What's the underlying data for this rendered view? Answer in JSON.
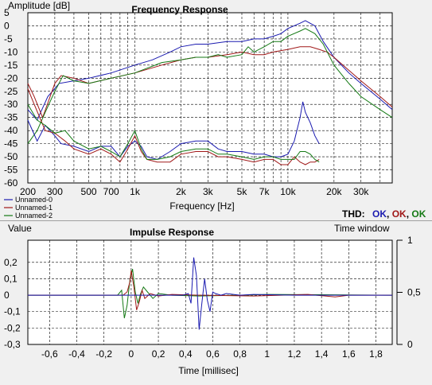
{
  "colors": {
    "series0": "#1b1bb0",
    "series1": "#a01818",
    "series2": "#157a15",
    "background": "#ffffff"
  },
  "thd": {
    "label": "THD:",
    "values": [
      "OK",
      "OK",
      "OK"
    ]
  },
  "chart_data": [
    {
      "type": "line",
      "title": "Frequency Response",
      "ylabel": "Amplitude [dB]",
      "xlabel": "Frequency [Hz]",
      "xscale": "log",
      "grid": true,
      "legend": "bottom-left",
      "xlim": [
        200,
        48000
      ],
      "ylim": [
        -60,
        5
      ],
      "x_ticks": [
        {
          "v": 200,
          "l": "200"
        },
        {
          "v": 300,
          "l": "300"
        },
        {
          "v": 500,
          "l": "500"
        },
        {
          "v": 700,
          "l": "700"
        },
        {
          "v": 1000,
          "l": "1k"
        },
        {
          "v": 2000,
          "l": "2k"
        },
        {
          "v": 3000,
          "l": "3k"
        },
        {
          "v": 5000,
          "l": "5k"
        },
        {
          "v": 7000,
          "l": "7k"
        },
        {
          "v": 10000,
          "l": "10k"
        },
        {
          "v": 20000,
          "l": "20k"
        },
        {
          "v": 30000,
          "l": "30k"
        }
      ],
      "y_ticks": [
        5,
        0,
        -5,
        -10,
        -15,
        -20,
        -25,
        -30,
        -35,
        -40,
        -45,
        -50,
        -55,
        -60
      ],
      "series": [
        {
          "name": "Unnamed-0",
          "points": [
            [
              200,
              -32
            ],
            [
              230,
              -36
            ],
            [
              270,
              -27
            ],
            [
              320,
              -22
            ],
            [
              400,
              -21
            ],
            [
              500,
              -20
            ],
            [
              700,
              -18
            ],
            [
              1000,
              -15
            ],
            [
              1300,
              -13
            ],
            [
              1700,
              -10
            ],
            [
              2000,
              -8
            ],
            [
              2500,
              -7
            ],
            [
              3000,
              -7
            ],
            [
              4000,
              -6
            ],
            [
              5000,
              -6
            ],
            [
              6000,
              -5
            ],
            [
              7000,
              -5
            ],
            [
              8000,
              -4
            ],
            [
              9000,
              -3
            ],
            [
              10000,
              -1
            ],
            [
              12000,
              1
            ],
            [
              13000,
              2
            ],
            [
              15000,
              0
            ],
            [
              17000,
              -6
            ],
            [
              20000,
              -12
            ],
            [
              25000,
              -18
            ],
            [
              30000,
              -22
            ],
            [
              40000,
              -28
            ],
            [
              48000,
              -32
            ]
          ]
        },
        {
          "name": "Unnamed-1",
          "points": [
            [
              200,
              -22
            ],
            [
              220,
              -27
            ],
            [
              250,
              -35
            ],
            [
              300,
              -22
            ],
            [
              330,
              -19
            ],
            [
              400,
              -20
            ],
            [
              500,
              -22
            ],
            [
              700,
              -20
            ],
            [
              1000,
              -18
            ],
            [
              1500,
              -15
            ],
            [
              2000,
              -13
            ],
            [
              2500,
              -12
            ],
            [
              3000,
              -12
            ],
            [
              4000,
              -11
            ],
            [
              5000,
              -10
            ],
            [
              6000,
              -11
            ],
            [
              7000,
              -11
            ],
            [
              8000,
              -10
            ],
            [
              10000,
              -9
            ],
            [
              12000,
              -8
            ],
            [
              14000,
              -8
            ],
            [
              16000,
              -9
            ],
            [
              18000,
              -10
            ],
            [
              20000,
              -12
            ],
            [
              25000,
              -17
            ],
            [
              30000,
              -21
            ],
            [
              40000,
              -27
            ],
            [
              48000,
              -31
            ]
          ]
        },
        {
          "name": "Unnamed-2",
          "points": [
            [
              200,
              -45
            ],
            [
              230,
              -40
            ],
            [
              260,
              -33
            ],
            [
              300,
              -25
            ],
            [
              340,
              -19
            ],
            [
              400,
              -21
            ],
            [
              500,
              -22
            ],
            [
              700,
              -20
            ],
            [
              1000,
              -18
            ],
            [
              1500,
              -14
            ],
            [
              2000,
              -13
            ],
            [
              2500,
              -12
            ],
            [
              3000,
              -12
            ],
            [
              3500,
              -11
            ],
            [
              4000,
              -12
            ],
            [
              5000,
              -11
            ],
            [
              5500,
              -8
            ],
            [
              6000,
              -10
            ],
            [
              7000,
              -8
            ],
            [
              8000,
              -6
            ],
            [
              9000,
              -6
            ],
            [
              10000,
              -4
            ],
            [
              12000,
              -2
            ],
            [
              13000,
              -1
            ],
            [
              15000,
              -3
            ],
            [
              17000,
              -7
            ],
            [
              20000,
              -15
            ],
            [
              25000,
              -22
            ],
            [
              30000,
              -27
            ],
            [
              40000,
              -32
            ],
            [
              48000,
              -35
            ]
          ]
        },
        {
          "name": "Unnamed-0 THD",
          "points": [
            [
              200,
              -36
            ],
            [
              230,
              -44
            ],
            [
              260,
              -38
            ],
            [
              300,
              -42
            ],
            [
              330,
              -45
            ],
            [
              400,
              -46
            ],
            [
              500,
              -48
            ],
            [
              600,
              -46
            ],
            [
              700,
              -46
            ],
            [
              800,
              -50
            ],
            [
              900,
              -46
            ],
            [
              1000,
              -44
            ],
            [
              1100,
              -46
            ],
            [
              1200,
              -50
            ],
            [
              1400,
              -51
            ],
            [
              1700,
              -48
            ],
            [
              2000,
              -45
            ],
            [
              2500,
              -44
            ],
            [
              3000,
              -44
            ],
            [
              3500,
              -47
            ],
            [
              4000,
              -48
            ],
            [
              5000,
              -48
            ],
            [
              6000,
              -49
            ],
            [
              7000,
              -49
            ],
            [
              8000,
              -50
            ],
            [
              9000,
              -50
            ],
            [
              10000,
              -49
            ],
            [
              11000,
              -44
            ],
            [
              12000,
              -35
            ],
            [
              12500,
              -29
            ],
            [
              13000,
              -33
            ],
            [
              14000,
              -37
            ],
            [
              15000,
              -42
            ],
            [
              16000,
              -45
            ]
          ]
        },
        {
          "name": "Unnamed-1 THD",
          "points": [
            [
              200,
              -24
            ],
            [
              220,
              -30
            ],
            [
              260,
              -40
            ],
            [
              300,
              -41
            ],
            [
              350,
              -44
            ],
            [
              400,
              -47
            ],
            [
              500,
              -49
            ],
            [
              600,
              -47
            ],
            [
              700,
              -49
            ],
            [
              800,
              -52
            ],
            [
              900,
              -47
            ],
            [
              1000,
              -42
            ],
            [
              1100,
              -48
            ],
            [
              1200,
              -51
            ],
            [
              1400,
              -52
            ],
            [
              1700,
              -52
            ],
            [
              2000,
              -49
            ],
            [
              2500,
              -48
            ],
            [
              3000,
              -48
            ],
            [
              3500,
              -50
            ],
            [
              4000,
              -50
            ],
            [
              5000,
              -51
            ],
            [
              6000,
              -52
            ],
            [
              7000,
              -51
            ],
            [
              8000,
              -51
            ],
            [
              9000,
              -53
            ],
            [
              10000,
              -53
            ],
            [
              11000,
              -50
            ],
            [
              12000,
              -52
            ],
            [
              13000,
              -53
            ],
            [
              14000,
              -52
            ],
            [
              15000,
              -52
            ],
            [
              16000,
              -51
            ]
          ]
        },
        {
          "name": "Unnamed-2 THD",
          "points": [
            [
              200,
              -30
            ],
            [
              230,
              -36
            ],
            [
              260,
              -38
            ],
            [
              300,
              -41
            ],
            [
              350,
              -40
            ],
            [
              400,
              -44
            ],
            [
              500,
              -47
            ],
            [
              600,
              -46
            ],
            [
              700,
              -48
            ],
            [
              800,
              -50
            ],
            [
              900,
              -45
            ],
            [
              1000,
              -40
            ],
            [
              1100,
              -47
            ],
            [
              1200,
              -51
            ],
            [
              1400,
              -51
            ],
            [
              1700,
              -50
            ],
            [
              2000,
              -48
            ],
            [
              2500,
              -47
            ],
            [
              3000,
              -47
            ],
            [
              3500,
              -49
            ],
            [
              4000,
              -49
            ],
            [
              5000,
              -50
            ],
            [
              6000,
              -51
            ],
            [
              7000,
              -50
            ],
            [
              8000,
              -50
            ],
            [
              9000,
              -51
            ],
            [
              10000,
              -51
            ],
            [
              11000,
              -51
            ],
            [
              12000,
              -48
            ],
            [
              13000,
              -48
            ],
            [
              14000,
              -49
            ],
            [
              15000,
              -51
            ],
            [
              16000,
              -52
            ]
          ]
        }
      ]
    },
    {
      "type": "line",
      "title": "Impulse Response",
      "ylabel": "Value",
      "xlabel": "Time [millisec]",
      "right_label": "Time window",
      "grid": true,
      "xlim": [
        -0.76,
        1.92
      ],
      "ylim": [
        -0.3,
        0.3
      ],
      "x_ticks": [
        -0.6,
        -0.4,
        -0.2,
        0,
        0.2,
        0.4,
        0.6,
        0.8,
        1,
        1.2,
        1.4,
        1.6,
        1.8
      ],
      "x_tick_labels": [
        "-0,6",
        "-0,4",
        "-0,2",
        "0",
        "0,2",
        "0,4",
        "0,6",
        "0,8",
        "1",
        "1,2",
        "1,4",
        "1,6",
        "1,8"
      ],
      "y_ticks": [
        0.2,
        0.1,
        0,
        -0.1,
        -0.2,
        -0.3
      ],
      "y_tick_labels": [
        "0,2",
        "0,1",
        "0",
        "-0,1",
        "-0,2",
        "-0,3"
      ],
      "right_ticks": [
        "1",
        "0,5",
        "0"
      ],
      "series": [
        {
          "name": "Unnamed-0",
          "points": [
            [
              -0.76,
              0
            ],
            [
              0.38,
              0
            ],
            [
              0.42,
              0.01
            ],
            [
              0.44,
              -0.05
            ],
            [
              0.46,
              0.23
            ],
            [
              0.48,
              0.12
            ],
            [
              0.5,
              -0.21
            ],
            [
              0.52,
              -0.05
            ],
            [
              0.54,
              0.1
            ],
            [
              0.56,
              -0.03
            ],
            [
              0.58,
              -0.1
            ],
            [
              0.6,
              0.02
            ],
            [
              0.62,
              0.01
            ],
            [
              0.66,
              0
            ],
            [
              0.7,
              0.01
            ],
            [
              0.8,
              0
            ],
            [
              0.9,
              0.005
            ],
            [
              1.2,
              0
            ],
            [
              1.6,
              0
            ],
            [
              1.92,
              0
            ]
          ]
        },
        {
          "name": "Unnamed-1",
          "points": [
            [
              -0.76,
              0
            ],
            [
              -0.06,
              0
            ],
            [
              -0.03,
              0.02
            ],
            [
              -0.01,
              0.08
            ],
            [
              0,
              0.15
            ],
            [
              0.02,
              0.05
            ],
            [
              0.04,
              -0.09
            ],
            [
              0.06,
              -0.04
            ],
            [
              0.08,
              0.03
            ],
            [
              0.1,
              -0.02
            ],
            [
              0.14,
              0.01
            ],
            [
              0.2,
              -0.005
            ],
            [
              0.3,
              0.005
            ],
            [
              0.5,
              0
            ],
            [
              0.9,
              -0.005
            ],
            [
              1.1,
              0
            ],
            [
              1.3,
              0.005
            ],
            [
              1.5,
              -0.01
            ],
            [
              1.6,
              0
            ],
            [
              1.92,
              0
            ]
          ]
        },
        {
          "name": "Unnamed-2",
          "points": [
            [
              -0.76,
              0
            ],
            [
              -0.1,
              0
            ],
            [
              -0.07,
              0.03
            ],
            [
              -0.05,
              -0.14
            ],
            [
              -0.03,
              -0.06
            ],
            [
              -0.01,
              0.09
            ],
            [
              0.01,
              0.16
            ],
            [
              0.03,
              0.02
            ],
            [
              0.05,
              -0.05
            ],
            [
              0.07,
              0.01
            ],
            [
              0.09,
              0.05
            ],
            [
              0.12,
              0.02
            ],
            [
              0.16,
              -0.02
            ],
            [
              0.2,
              0.01
            ],
            [
              0.3,
              0
            ],
            [
              0.5,
              -0.005
            ],
            [
              0.8,
              0
            ],
            [
              1.0,
              0.005
            ],
            [
              1.92,
              0
            ]
          ]
        }
      ]
    }
  ]
}
